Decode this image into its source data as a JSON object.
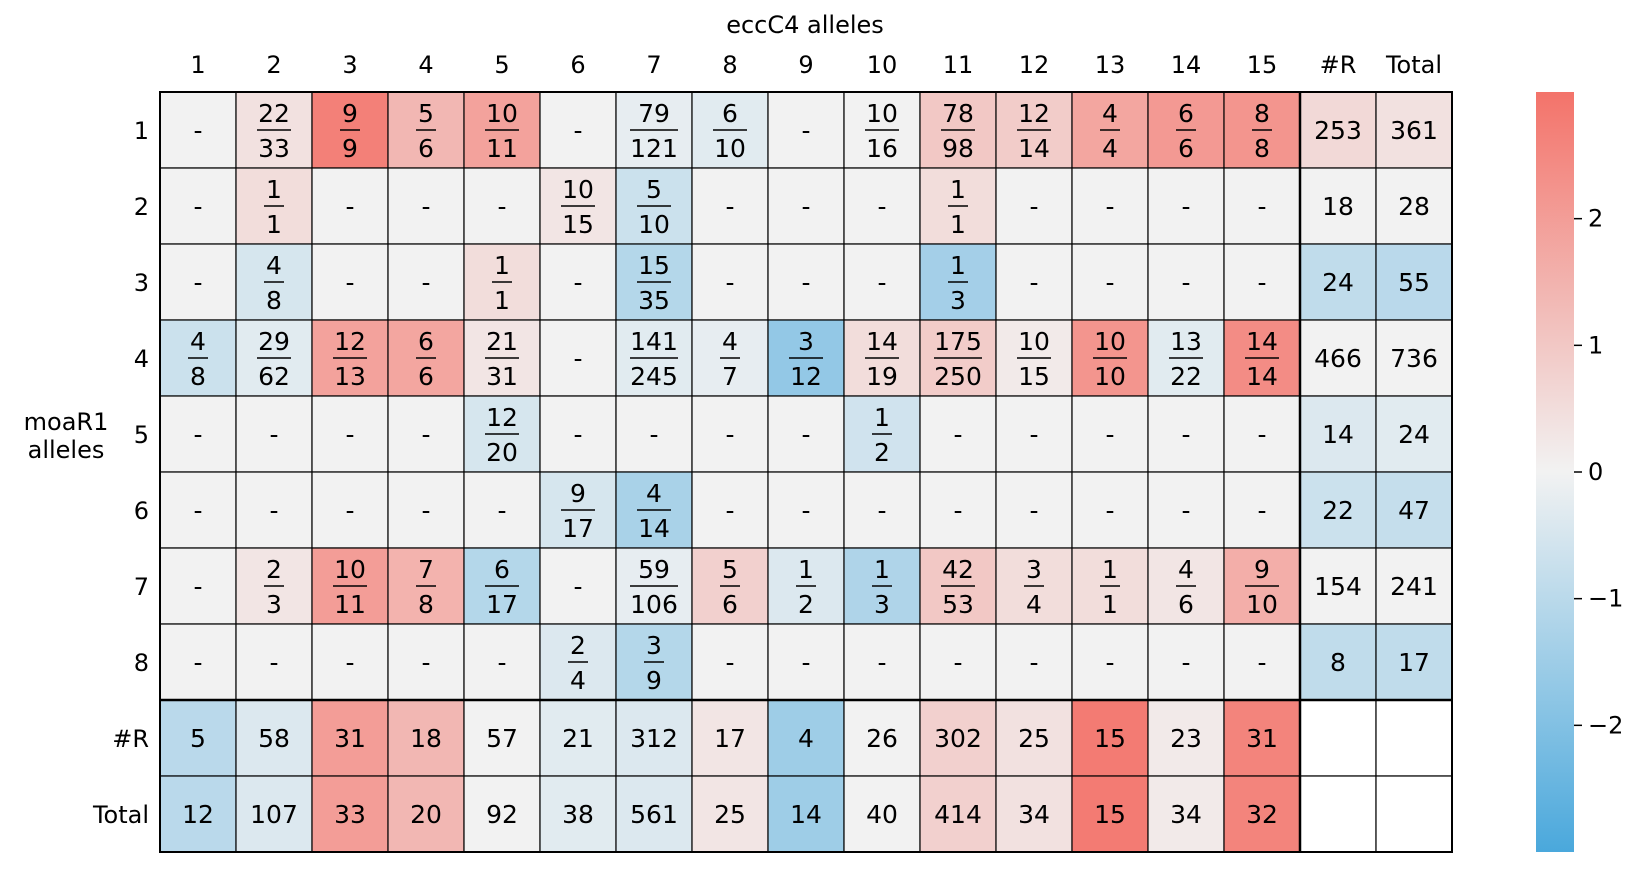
{
  "chart_data": {
    "type": "heatmap",
    "xlabel": "eccC4 alleles",
    "ylabel": "moaR1 alleles",
    "col_labels": [
      "1",
      "2",
      "3",
      "4",
      "5",
      "6",
      "7",
      "8",
      "9",
      "10",
      "11",
      "12",
      "13",
      "14",
      "15",
      "#R",
      "Total"
    ],
    "row_labels": [
      "1",
      "2",
      "3",
      "4",
      "5",
      "6",
      "7",
      "8",
      "#R",
      "Total"
    ],
    "cells": [
      [
        "-",
        "22/33",
        "9/9",
        "5/6",
        "10/11",
        "-",
        "79/121",
        "6/10",
        "-",
        "10/16",
        "78/98",
        "12/14",
        "4/4",
        "6/6",
        "8/8",
        "253",
        "361"
      ],
      [
        "-",
        "1/1",
        "-",
        "-",
        "-",
        "10/15",
        "5/10",
        "-",
        "-",
        "-",
        "1/1",
        "-",
        "-",
        "-",
        "-",
        "18",
        "28"
      ],
      [
        "-",
        "4/8",
        "-",
        "-",
        "1/1",
        "-",
        "15/35",
        "-",
        "-",
        "-",
        "1/3",
        "-",
        "-",
        "-",
        "-",
        "24",
        "55"
      ],
      [
        "4/8",
        "29/62",
        "12/13",
        "6/6",
        "21/31",
        "-",
        "141/245",
        "4/7",
        "3/12",
        "14/19",
        "175/250",
        "10/15",
        "10/10",
        "13/22",
        "14/14",
        "466",
        "736"
      ],
      [
        "-",
        "-",
        "-",
        "-",
        "12/20",
        "-",
        "-",
        "-",
        "-",
        "1/2",
        "-",
        "-",
        "-",
        "-",
        "-",
        "14",
        "24"
      ],
      [
        "-",
        "-",
        "-",
        "-",
        "-",
        "9/17",
        "4/14",
        "-",
        "-",
        "-",
        "-",
        "-",
        "-",
        "-",
        "-",
        "22",
        "47"
      ],
      [
        "-",
        "2/3",
        "10/11",
        "7/8",
        "6/17",
        "-",
        "59/106",
        "5/6",
        "1/2",
        "1/3",
        "42/53",
        "3/4",
        "1/1",
        "4/6",
        "9/10",
        "154",
        "241"
      ],
      [
        "-",
        "-",
        "-",
        "-",
        "-",
        "2/4",
        "3/9",
        "-",
        "-",
        "-",
        "-",
        "-",
        "-",
        "-",
        "-",
        "8",
        "17"
      ],
      [
        "5",
        "58",
        "31",
        "18",
        "57",
        "21",
        "312",
        "17",
        "4",
        "26",
        "302",
        "25",
        "15",
        "23",
        "31",
        "",
        ""
      ],
      [
        "12",
        "107",
        "33",
        "20",
        "92",
        "38",
        "561",
        "25",
        "14",
        "40",
        "414",
        "34",
        "15",
        "34",
        "32",
        "",
        ""
      ]
    ],
    "scores": [
      [
        0,
        0.4,
        2.7,
        1.4,
        1.9,
        0,
        -0.2,
        -0.3,
        0,
        0,
        1.0,
        0.9,
        1.8,
        2.1,
        2.2,
        0.6,
        0.4
      ],
      [
        0,
        0.5,
        0,
        0,
        0,
        0.3,
        -0.7,
        0,
        0,
        0,
        0.5,
        0,
        0,
        0,
        0,
        0,
        0
      ],
      [
        0,
        -0.5,
        0,
        0,
        0.5,
        0,
        -1.1,
        0,
        0,
        0,
        -1.4,
        0,
        0,
        0,
        0,
        -0.9,
        -1.0
      ],
      [
        -0.7,
        -0.3,
        1.9,
        1.8,
        0.3,
        0,
        -0.3,
        -0.2,
        -1.7,
        0.5,
        0.9,
        0.2,
        2.2,
        -0.3,
        2.4,
        0,
        0
      ],
      [
        0,
        0,
        0,
        0,
        -0.5,
        0,
        0,
        0,
        0,
        -0.6,
        0,
        0,
        0,
        0,
        0,
        -0.4,
        -0.3
      ],
      [
        0,
        0,
        0,
        0,
        0,
        -0.5,
        -1.3,
        0,
        0,
        0,
        0,
        0,
        0,
        0,
        0,
        -0.7,
        -0.8
      ],
      [
        0,
        0.3,
        2.0,
        1.5,
        -1.1,
        0,
        -0.2,
        0.8,
        -0.4,
        -1.2,
        1.0,
        0.5,
        0.5,
        0.3,
        1.6,
        0,
        0
      ],
      [
        0,
        0,
        0,
        0,
        0,
        -0.4,
        -1.1,
        0,
        0,
        0,
        0,
        0,
        0,
        0,
        0,
        -0.9,
        -0.9
      ],
      [
        -1.0,
        -0.4,
        2.0,
        1.4,
        0,
        -0.3,
        -0.4,
        0.3,
        -1.5,
        0,
        0.8,
        0.4,
        2.8,
        0.2,
        2.6,
        null,
        null
      ],
      [
        -1.0,
        -0.4,
        2.0,
        1.4,
        0,
        -0.3,
        -0.4,
        0.3,
        -1.5,
        0,
        0.8,
        0.4,
        2.8,
        0.2,
        2.6,
        null,
        null
      ]
    ],
    "colorbar": {
      "min": -3,
      "max": 3,
      "ticks": [
        "2",
        "1",
        "0",
        "−1",
        "−2"
      ],
      "tick_values": [
        2,
        1,
        0,
        -1,
        -2
      ]
    },
    "colors": {
      "negative": "#4aa8dc",
      "neutral": "#f2f2f2",
      "positive": "#f3736a",
      "empty": "#ffffff"
    }
  }
}
